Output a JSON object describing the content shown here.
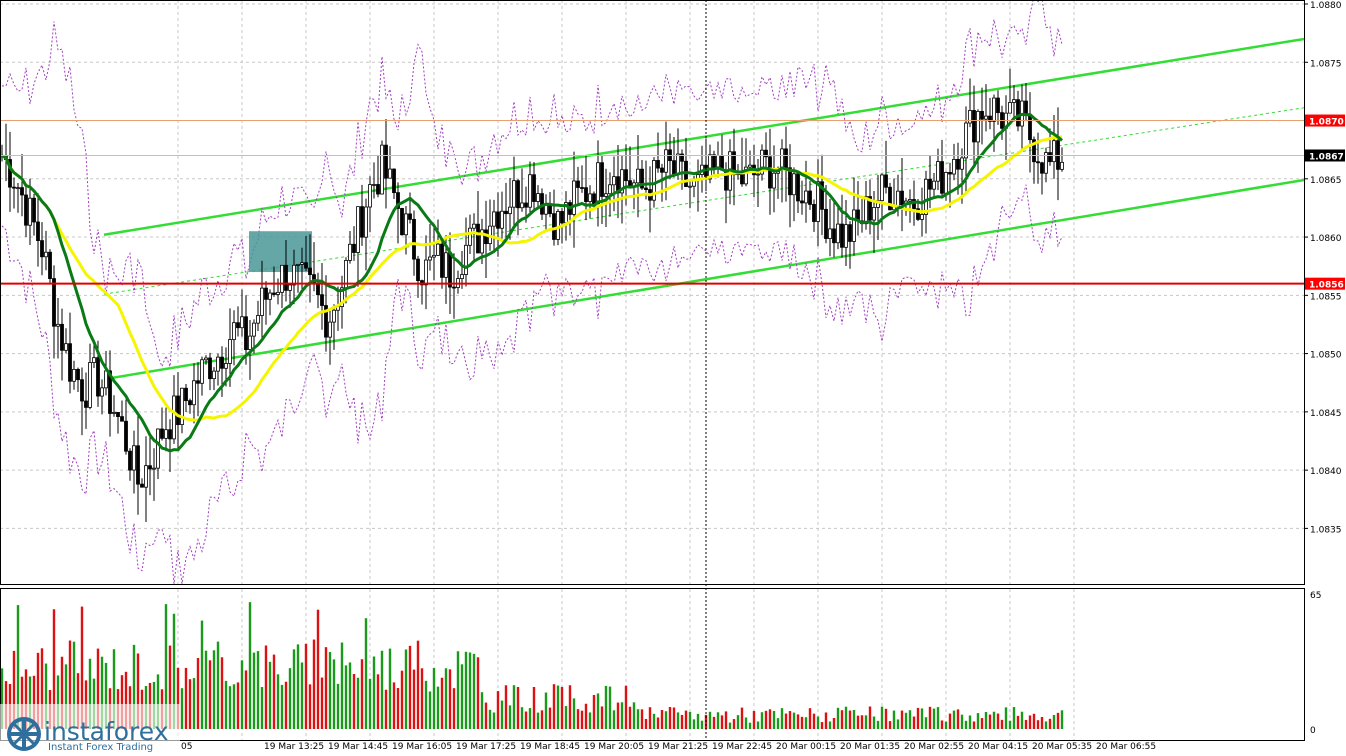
{
  "chart_data": {
    "type": "candlestick",
    "price_axis": {
      "ylim": [
        1.0831,
        1.088
      ],
      "ticks": [
        "1.0880",
        "1.0875",
        "1.0870",
        "1.0865",
        "1.0860",
        "1.0855",
        "1.0850",
        "1.0845",
        "1.0840",
        "1.0835"
      ]
    },
    "price_tags": [
      {
        "label": "1.0870",
        "value": 1.087,
        "color": "#ff0000"
      },
      {
        "label": "1.0867",
        "value": 1.0867,
        "color": "#000000"
      },
      {
        "label": "1.0856",
        "value": 1.0856,
        "color": "#ff0000"
      }
    ],
    "support_line": {
      "value": 1.0856,
      "color": "#e00000"
    },
    "resistance_line": {
      "value": 1.087,
      "color": "#e8a070"
    },
    "time_labels": [
      "05",
      "19 Mar 13:25",
      "19 Mar 14:45",
      "19 Mar 16:05",
      "19 Mar 17:25",
      "19 Mar 18:45",
      "19 Mar 20:05",
      "19 Mar 21:25",
      "19 Mar 22:45",
      "20 Mar 00:15",
      "20 Mar 01:35",
      "20 Mar 02:55",
      "20 Mar 04:15",
      "20 Mar 05:35",
      "20 Mar 06:55"
    ],
    "volume_axis": {
      "max_label": "65",
      "min_label": "0",
      "max": 65
    },
    "channel": {
      "upper": [
        [
          "start",
          1.08602
        ],
        [
          "end",
          1.0877
        ]
      ],
      "lower": [
        [
          "start",
          1.08478
        ],
        [
          "end",
          1.08649
        ]
      ],
      "mid": [
        [
          "start",
          1.08551
        ],
        [
          "end",
          1.08711
        ]
      ]
    },
    "highlight_box": {
      "high": 1.08605,
      "low": 1.0857
    },
    "closes": [
      1.0867,
      1.0865,
      1.0862,
      1.0859,
      1.0853,
      1.0849,
      1.0847,
      1.0848,
      1.0846,
      1.0843,
      1.0839,
      1.0841,
      1.0844,
      1.0845,
      1.0847,
      1.0849,
      1.085,
      1.0852,
      1.0851,
      1.0854,
      1.0856,
      1.0857,
      1.0856,
      1.0855,
      1.0853,
      1.0856,
      1.086,
      1.0864,
      1.0866,
      1.0863,
      1.086,
      1.0857,
      1.0858,
      1.0857,
      1.0859,
      1.086,
      1.0862,
      1.0863,
      1.0864,
      1.0865,
      1.0863,
      1.0861,
      1.0863,
      1.0864,
      1.0865,
      1.0866,
      1.0865,
      1.0864,
      1.0865,
      1.0866,
      1.0865,
      1.0864,
      1.0865,
      1.0866,
      1.0865,
      1.0865,
      1.0866,
      1.0866,
      1.0865,
      1.0864,
      1.0863,
      1.0861,
      1.086,
      1.0861,
      1.0863,
      1.0864,
      1.0864,
      1.0863,
      1.0864,
      1.0865,
      1.0867,
      1.0869,
      1.0871,
      1.0871,
      1.087,
      1.087,
      1.0868,
      1.0866,
      1.0867
    ],
    "volume_bars": "approximately 270 green/red volume columns, tallest ~65"
  },
  "logo": {
    "brand": "instaforex",
    "tagline": "Instant Forex Trading"
  }
}
